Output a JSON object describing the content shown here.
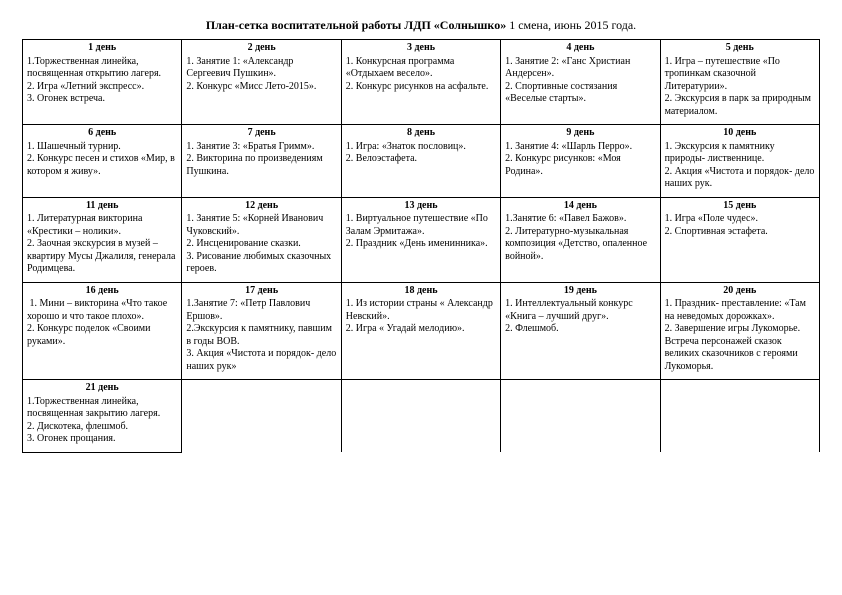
{
  "title_bold": "План-сетка воспитательной работы ЛДП «Солнышко»",
  "title_rest": " 1 смена, июнь 2015 года.",
  "colors": {
    "background": "#ffffff",
    "text": "#000000",
    "border": "#000000"
  },
  "typography": {
    "font_family": "Times New Roman",
    "title_fontsize": 12,
    "cell_fontsize": 10
  },
  "rows": [
    [
      {
        "head": "1 день",
        "items": "1.Торжественная линейка, посвященная открытию лагеря.\n2. Игра «Летний экспресс».\n3. Огонек встреча."
      },
      {
        "head": "2 день",
        "items": "1. Занятие 1: «Александр Сергеевич Пушкин».\n2. Конкурс «Мисс Лето-2015»."
      },
      {
        "head": "3    день",
        "items": "1. Конкурсная программа «Отдыхаем весело».\n2. Конкурс рисунков на асфальте."
      },
      {
        "head": "4    день",
        "items": "1. Занятие 2: «Ганс Христиан Андерсен».\n2. Спортивные состязания «Веселые старты»."
      },
      {
        "head": "5    день",
        "items": "1. Игра – путешествие «По тропинкам сказочной Литературии».\n2. Экскурсия в парк за природным материалом."
      }
    ],
    [
      {
        "head": "6    день",
        "items": "1. Шашечный турнир.\n2. Конкурс песен и стихов «Мир, в котором я живу»."
      },
      {
        "head": "7    день",
        "items": "1. Занятие 3: «Братья Гримм».\n2. Викторина по произведениям Пушкина."
      },
      {
        "head": "8 день",
        "items": "1. Игра: «Знаток пословиц».\n2. Велоэстафета."
      },
      {
        "head": "9 день",
        "items": "1. Занятие 4: «Шарль Перро».\n2. Конкурс рисунков: «Моя Родина»."
      },
      {
        "head": "10 день",
        "items": "1. Экскурсия к памятнику природы- лиственнице.\n2. Акция «Чистота и порядок- дело наших рук."
      }
    ],
    [
      {
        "head": "11 день",
        "items": "1. Литературная викторина «Крестики – нолики».\n2. Заочная экскурсия в музей – квартиру Мусы Джалиля, генерала Родимцева."
      },
      {
        "head": "12 день",
        "items": "1. Занятие 5: «Корней Иванович Чуковский».\n2. Инсценирование сказки.\n3. Рисование любимых сказочных героев."
      },
      {
        "head": "13 день",
        "items": "1. Виртуальное путешествие «По Залам Эрмитажа».\n2. Праздник «День именинника»."
      },
      {
        "head": "14 день",
        "items": "1.Занятие 6: «Павел Бажов».\n2. Литературно-музыкальная композиция «Детство, опаленное войной»."
      },
      {
        "head": "15 день",
        "items": "1. Игра «Поле чудес».\n2. Спортивная эстафета."
      }
    ],
    [
      {
        "head": "16 день",
        "items": " 1. Мини – викторина «Что такое хорошо и что такое плохо».\n2. Конкурс поделок «Своими руками»."
      },
      {
        "head": "17 день",
        "items": "1.Занятие 7: «Петр Павлович Ершов».\n2.Экскурсия к памятнику, павшим в годы ВОВ.\n3. Акция «Чистота и порядок- дело наших рук»"
      },
      {
        "head": "18 день",
        "items": "1. Из истории страны « Александр Невский».\n2. Игра « Угадай мелодию»."
      },
      {
        "head": "19 день",
        "items": "1. Интеллектуальный конкурс «Книга – лучший друг».\n2. Флешмоб."
      },
      {
        "head": "20 день",
        "items": "1. Праздник- преставление: «Там на неведомых дорожках».\n2. Завершение игры Лукоморье. Встреча персонажей сказок великих сказочников с героями Лукоморья."
      }
    ],
    [
      {
        "head": "21 день",
        "items": "1.Торжественная линейка, посвященная закрытию лагеря.\n2. Дискотека, флешмоб.\n3. Огонек прощания."
      },
      {
        "head": "",
        "items": ""
      },
      {
        "head": "",
        "items": ""
      },
      {
        "head": "",
        "items": ""
      },
      {
        "head": "",
        "items": ""
      }
    ]
  ]
}
